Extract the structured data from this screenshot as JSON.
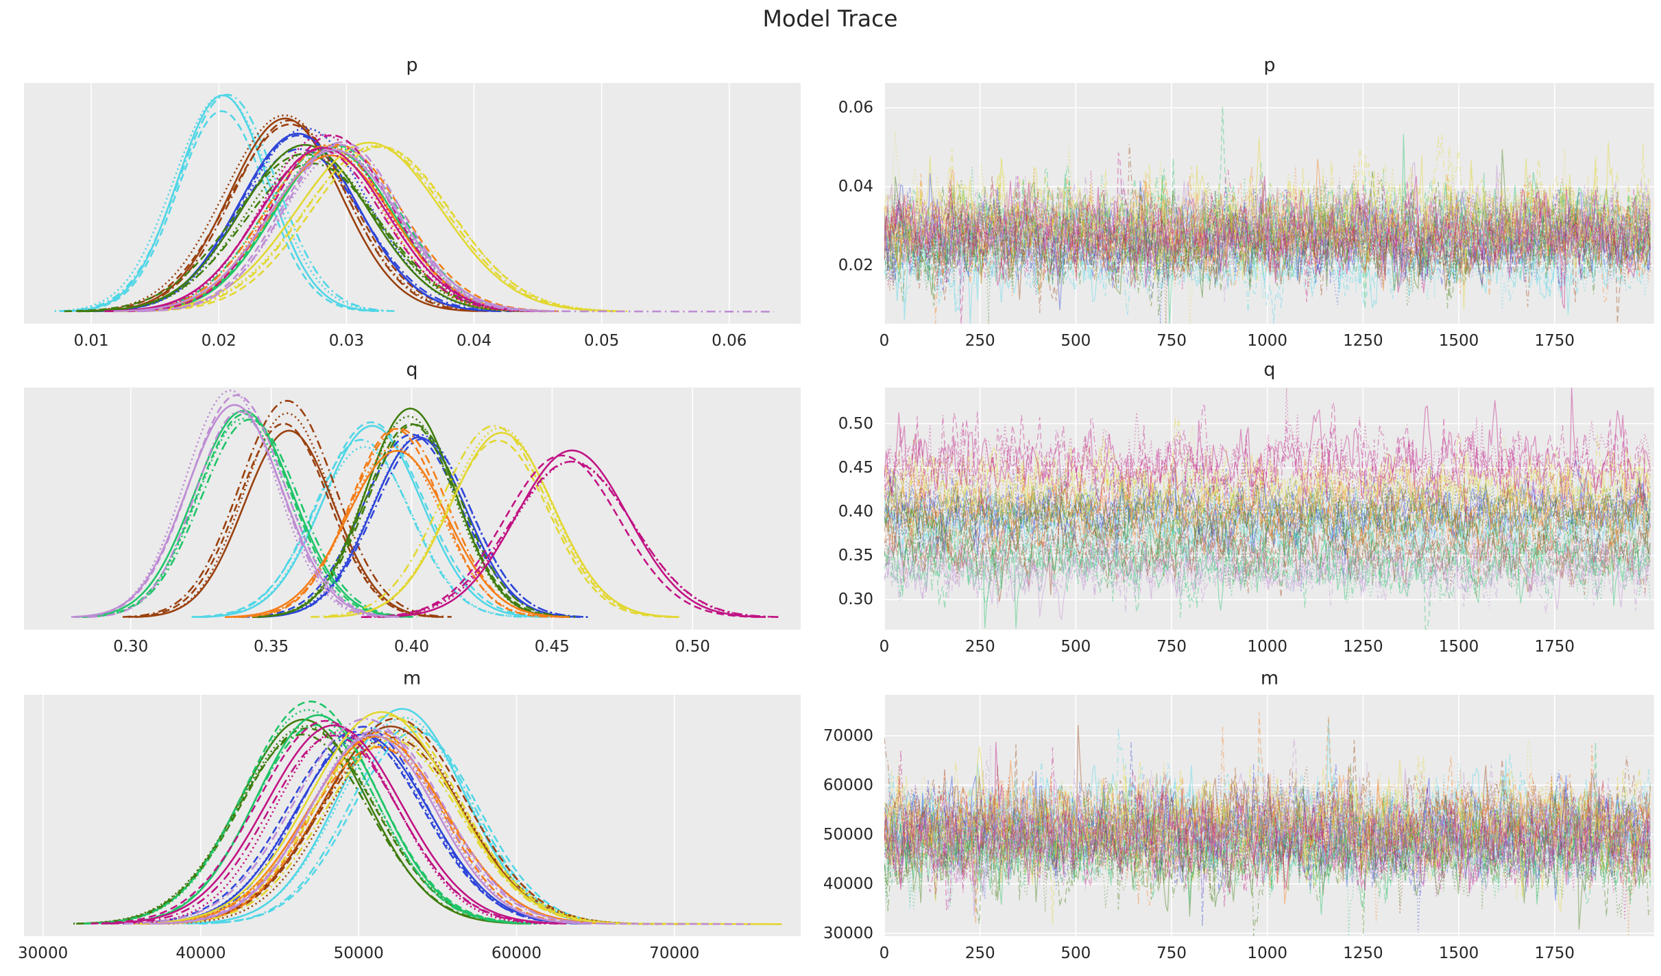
{
  "chart_data": {
    "type": "line",
    "subtype": "mcmc-trace-grid",
    "suptitle": "Model Trace",
    "grid": true,
    "n_chains_per_group": 4,
    "chain_linestyles": [
      "solid",
      "dashed",
      "dotted",
      "dashdot"
    ],
    "draws_per_chain": 2000,
    "style": {
      "panel_bg": "#EBEBEB",
      "grid_color": "#FFFFFF",
      "text_color": "#262626",
      "trace_alpha": 0.42
    },
    "palette": {
      "cyan": "#4FD6E6",
      "brown": "#9A400E",
      "blue": "#2E45D8",
      "darkgreen": "#3F7D0D",
      "emerald": "#1FC468",
      "orange": "#F57D17",
      "yellow": "#E2D731",
      "magenta": "#C11384",
      "orchid": "#BE8CD4"
    },
    "rows": [
      {
        "param": "p",
        "density": {
          "xlim": [
            0.00473,
            0.0656
          ],
          "xticks": [
            0.01,
            0.02,
            0.03,
            0.04,
            0.05,
            0.06
          ],
          "xtick_labels": [
            "0.01",
            "0.02",
            "0.03",
            "0.04",
            "0.05",
            "0.06"
          ]
        },
        "trace": {
          "xlim": [
            0,
            2010
          ],
          "xticks": [
            0,
            250,
            500,
            750,
            1000,
            1250,
            1500,
            1750
          ],
          "xtick_labels": [
            "0",
            "250",
            "500",
            "750",
            "1000",
            "1250",
            "1500",
            "1750"
          ],
          "ylim": [
            0.0053,
            0.0663
          ],
          "yticks": [
            0.02,
            0.04,
            0.06
          ],
          "ytick_labels": [
            "0.02",
            "0.04",
            "0.06"
          ]
        },
        "groups": [
          {
            "color": "cyan",
            "mean": 0.0205,
            "sd": 0.0036,
            "peak": 1.0
          },
          {
            "color": "brown",
            "mean": 0.0253,
            "sd": 0.0045,
            "peak": 0.85
          },
          {
            "color": "blue",
            "mean": 0.0263,
            "sd": 0.0047,
            "peak": 0.8
          },
          {
            "color": "darkgreen",
            "mean": 0.027,
            "sd": 0.0052,
            "peak": 0.72
          },
          {
            "color": "emerald",
            "mean": 0.0291,
            "sd": 0.0048,
            "peak": 0.75
          },
          {
            "color": "orange",
            "mean": 0.0288,
            "sd": 0.0048,
            "peak": 0.74
          },
          {
            "color": "yellow",
            "mean": 0.0323,
            "sd": 0.0058,
            "peak": 0.76
          },
          {
            "color": "magenta",
            "mean": 0.0284,
            "sd": 0.0047,
            "peak": 0.76
          },
          {
            "color": "orchid",
            "mean": 0.0291,
            "sd": 0.0048,
            "peak": 0.78,
            "tail_to": 0.0635,
            "tail_chain": 3
          }
        ]
      },
      {
        "param": "q",
        "density": {
          "xlim": [
            0.262,
            0.5385
          ],
          "xticks": [
            0.3,
            0.35,
            0.4,
            0.45,
            0.5
          ],
          "xtick_labels": [
            "0.30",
            "0.35",
            "0.40",
            "0.45",
            "0.50"
          ]
        },
        "trace": {
          "xlim": [
            0,
            2010
          ],
          "xticks": [
            0,
            250,
            500,
            750,
            1000,
            1250,
            1500,
            1750
          ],
          "xtick_labels": [
            "0",
            "250",
            "500",
            "750",
            "1000",
            "1250",
            "1500",
            "1750"
          ],
          "ylim": [
            0.266,
            0.541
          ],
          "yticks": [
            0.3,
            0.35,
            0.4,
            0.45,
            0.5
          ],
          "ytick_labels": [
            "0.30",
            "0.35",
            "0.40",
            "0.45",
            "0.50"
          ]
        },
        "groups": [
          {
            "color": "cyan",
            "mean": 0.384,
            "sd": 0.0175,
            "peak": 0.84
          },
          {
            "color": "brown",
            "mean": 0.356,
            "sd": 0.0165,
            "peak": 0.92
          },
          {
            "color": "blue",
            "mean": 0.402,
            "sd": 0.0165,
            "peak": 0.84
          },
          {
            "color": "darkgreen",
            "mean": 0.399,
            "sd": 0.016,
            "peak": 0.94
          },
          {
            "color": "emerald",
            "mean": 0.341,
            "sd": 0.017,
            "peak": 0.9
          },
          {
            "color": "orange",
            "mean": 0.396,
            "sd": 0.017,
            "peak": 0.82
          },
          {
            "color": "yellow",
            "mean": 0.43,
            "sd": 0.018,
            "peak": 0.82
          },
          {
            "color": "magenta",
            "mean": 0.455,
            "sd": 0.021,
            "peak": 0.74
          },
          {
            "color": "orchid",
            "mean": 0.337,
            "sd": 0.016,
            "peak": 0.97
          }
        ]
      },
      {
        "param": "m",
        "density": {
          "xlim": [
            28800,
            78000
          ],
          "xticks": [
            30000,
            40000,
            50000,
            60000,
            70000
          ],
          "xtick_labels": [
            "30000",
            "40000",
            "50000",
            "60000",
            "70000"
          ]
        },
        "trace": {
          "xlim": [
            0,
            2010
          ],
          "xticks": [
            0,
            250,
            500,
            750,
            1000,
            1250,
            1500,
            1750
          ],
          "xtick_labels": [
            "0",
            "250",
            "500",
            "750",
            "1000",
            "1250",
            "1500",
            "1750"
          ],
          "ylim": [
            29400,
            78300
          ],
          "yticks": [
            30000,
            40000,
            50000,
            60000,
            70000
          ],
          "ytick_labels": [
            "30000",
            "40000",
            "50000",
            "60000",
            "70000"
          ]
        },
        "groups": [
          {
            "color": "cyan",
            "mean": 53200,
            "sd": 4100,
            "peak": 0.93,
            "tail_to": 72500,
            "tail_chain": 1
          },
          {
            "color": "brown",
            "mean": 52400,
            "sd": 4300,
            "peak": 0.9,
            "tail_to": 69000,
            "tail_chain": 2
          },
          {
            "color": "blue",
            "mean": 49800,
            "sd": 4200,
            "peak": 0.86
          },
          {
            "color": "darkgreen",
            "mean": 46700,
            "sd": 4100,
            "peak": 0.93
          },
          {
            "color": "emerald",
            "mean": 47300,
            "sd": 4000,
            "peak": 0.95
          },
          {
            "color": "orange",
            "mean": 51600,
            "sd": 4200,
            "peak": 0.87,
            "tail_to": 70800,
            "tail_chain": 3
          },
          {
            "color": "yellow",
            "mean": 51900,
            "sd": 4400,
            "peak": 0.9,
            "tail_to": 76800,
            "tail_chain": 0
          },
          {
            "color": "magenta",
            "mean": 48300,
            "sd": 4100,
            "peak": 0.88
          },
          {
            "color": "orchid",
            "mean": 50700,
            "sd": 4200,
            "peak": 0.92,
            "tail_to": 74800,
            "tail_chain": 1
          }
        ]
      }
    ]
  }
}
